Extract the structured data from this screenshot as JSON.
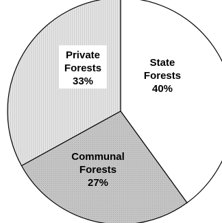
{
  "chart_data": {
    "type": "pie",
    "title": "",
    "slices": [
      {
        "lines": [
          "State",
          "Forests",
          "40%"
        ],
        "value": 40,
        "fill": "#ffffff",
        "pattern": "none"
      },
      {
        "lines": [
          "Communal",
          "Forests",
          "27%"
        ],
        "value": 27,
        "fill": "#c8c8c8",
        "pattern": "dots"
      },
      {
        "lines": [
          "Private",
          "Forests",
          "33%"
        ],
        "value": 33,
        "fill": "#e4e4e4",
        "pattern": "stripes"
      }
    ],
    "start": "12 o'clock",
    "direction": "clockwise"
  }
}
